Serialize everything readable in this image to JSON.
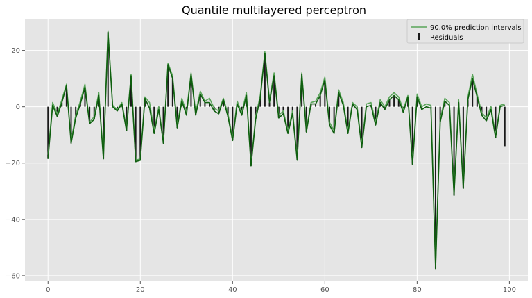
{
  "chart_data": {
    "type": "line",
    "title": "Quantile multilayered perceptron",
    "xlabel": "",
    "ylabel": "",
    "xlim": [
      -5,
      104
    ],
    "ylim": [
      -62,
      31
    ],
    "x_ticks": [
      0,
      20,
      40,
      60,
      80,
      100
    ],
    "y_ticks": [
      -60,
      -40,
      -20,
      0,
      20
    ],
    "grid": true,
    "legend_position": "top-right",
    "legend": [
      "90.0% prediction intervals",
      "Residuals"
    ],
    "colors": {
      "background": "#e5e5e5",
      "grid": "#ffffff",
      "upper_interval": "#5aa55a",
      "lower_interval": "#0f5f0f",
      "residuals": "#1a1a1a"
    },
    "residuals": [
      -18.5,
      0.5,
      -3.5,
      1.5,
      7.5,
      -13.0,
      -4.0,
      1.0,
      7.0,
      -6.0,
      -4.5,
      4.0,
      -18.5,
      26.5,
      0.0,
      -1.5,
      1.0,
      -8.5,
      11.0,
      -19.5,
      -19.0,
      3.0,
      -0.5,
      -9.5,
      -1.0,
      -13.0,
      15.0,
      10.0,
      -7.5,
      2.0,
      -3.0,
      11.5,
      -3.0,
      4.5,
      1.5,
      1.5,
      -1.5,
      -2.5,
      2.5,
      -3.5,
      -12.0,
      1.0,
      -3.0,
      4.0,
      -21.0,
      -4.5,
      3.0,
      19.0,
      1.5,
      11.0,
      -4.0,
      -2.5,
      -9.5,
      -2.5,
      -19.0,
      11.5,
      -9.0,
      1.0,
      1.0,
      4.0,
      9.5,
      -6.5,
      -9.5,
      5.0,
      0.5,
      -9.5,
      1.0,
      -1.0,
      -14.5,
      0.0,
      0.5,
      -6.5,
      1.5,
      -1.0,
      2.5,
      4.0,
      2.5,
      -2.0,
      3.5,
      -20.5,
      3.5,
      -1.0,
      0.0,
      -0.5,
      -57.5,
      -5.5,
      2.0,
      0.5,
      -31.5,
      1.5,
      -29.0,
      2.5,
      10.0,
      3.5,
      -3.0,
      -5.0,
      -1.0,
      -11.0,
      0.0,
      -14.0
    ],
    "series": [
      {
        "name": "90.0% prediction intervals",
        "values": [
          -17.0,
          1.5,
          -2.5,
          2.5,
          8.0,
          -12.0,
          -3.0,
          2.0,
          8.0,
          -5.5,
          -3.5,
          5.0,
          -17.5,
          27.0,
          0.5,
          -1.0,
          1.5,
          -7.5,
          11.5,
          -19.0,
          -18.5,
          3.5,
          1.5,
          -8.5,
          0.0,
          -12.5,
          15.5,
          11.0,
          -6.5,
          3.0,
          -2.0,
          12.0,
          -2.0,
          5.5,
          2.0,
          3.0,
          -0.5,
          -1.5,
          3.0,
          -2.5,
          -11.0,
          2.0,
          -2.0,
          5.0,
          -20.5,
          -3.5,
          4.0,
          19.5,
          2.5,
          12.0,
          -3.0,
          -1.5,
          -8.5,
          -1.5,
          -18.0,
          12.0,
          -8.0,
          1.5,
          2.0,
          5.0,
          10.5,
          -5.5,
          -8.5,
          6.0,
          1.5,
          -8.5,
          1.5,
          0.0,
          -13.5,
          1.0,
          1.5,
          -5.5,
          2.5,
          0.0,
          3.5,
          5.0,
          3.5,
          -1.0,
          4.0,
          -19.5,
          4.5,
          0.0,
          1.0,
          0.5,
          -56.5,
          -4.5,
          3.0,
          1.5,
          -30.5,
          2.5,
          -28.0,
          3.5,
          11.5,
          4.5,
          -2.0,
          -4.0,
          0.0,
          -10.0,
          0.5,
          1.0
        ]
      },
      {
        "name": "",
        "values": [
          -18.5,
          0.5,
          -3.5,
          1.5,
          7.5,
          -13.0,
          -4.0,
          1.0,
          7.0,
          -6.0,
          -4.5,
          4.0,
          -18.5,
          26.5,
          0.0,
          -1.5,
          1.0,
          -8.5,
          11.0,
          -19.5,
          -19.0,
          3.0,
          -0.5,
          -9.5,
          -1.0,
          -13.0,
          15.0,
          10.0,
          -7.5,
          2.0,
          -3.0,
          11.5,
          -3.0,
          4.5,
          1.5,
          1.5,
          -1.5,
          -2.5,
          2.5,
          -3.5,
          -12.0,
          1.0,
          -3.0,
          4.0,
          -21.0,
          -4.5,
          3.0,
          19.0,
          1.5,
          11.0,
          -4.0,
          -2.5,
          -9.5,
          -2.5,
          -19.0,
          11.5,
          -9.0,
          1.0,
          1.0,
          4.0,
          9.5,
          -6.5,
          -9.5,
          5.0,
          0.5,
          -9.5,
          1.0,
          -1.0,
          -14.5,
          0.0,
          0.5,
          -6.5,
          1.5,
          -1.0,
          2.5,
          4.0,
          2.5,
          -2.0,
          3.5,
          -20.5,
          3.5,
          -1.0,
          0.0,
          -0.5,
          -57.5,
          -5.5,
          2.0,
          0.5,
          -31.5,
          1.5,
          -29.0,
          2.5,
          10.0,
          3.5,
          -3.0,
          -5.0,
          -1.0,
          -11.0,
          0.0,
          0.5
        ]
      }
    ]
  }
}
